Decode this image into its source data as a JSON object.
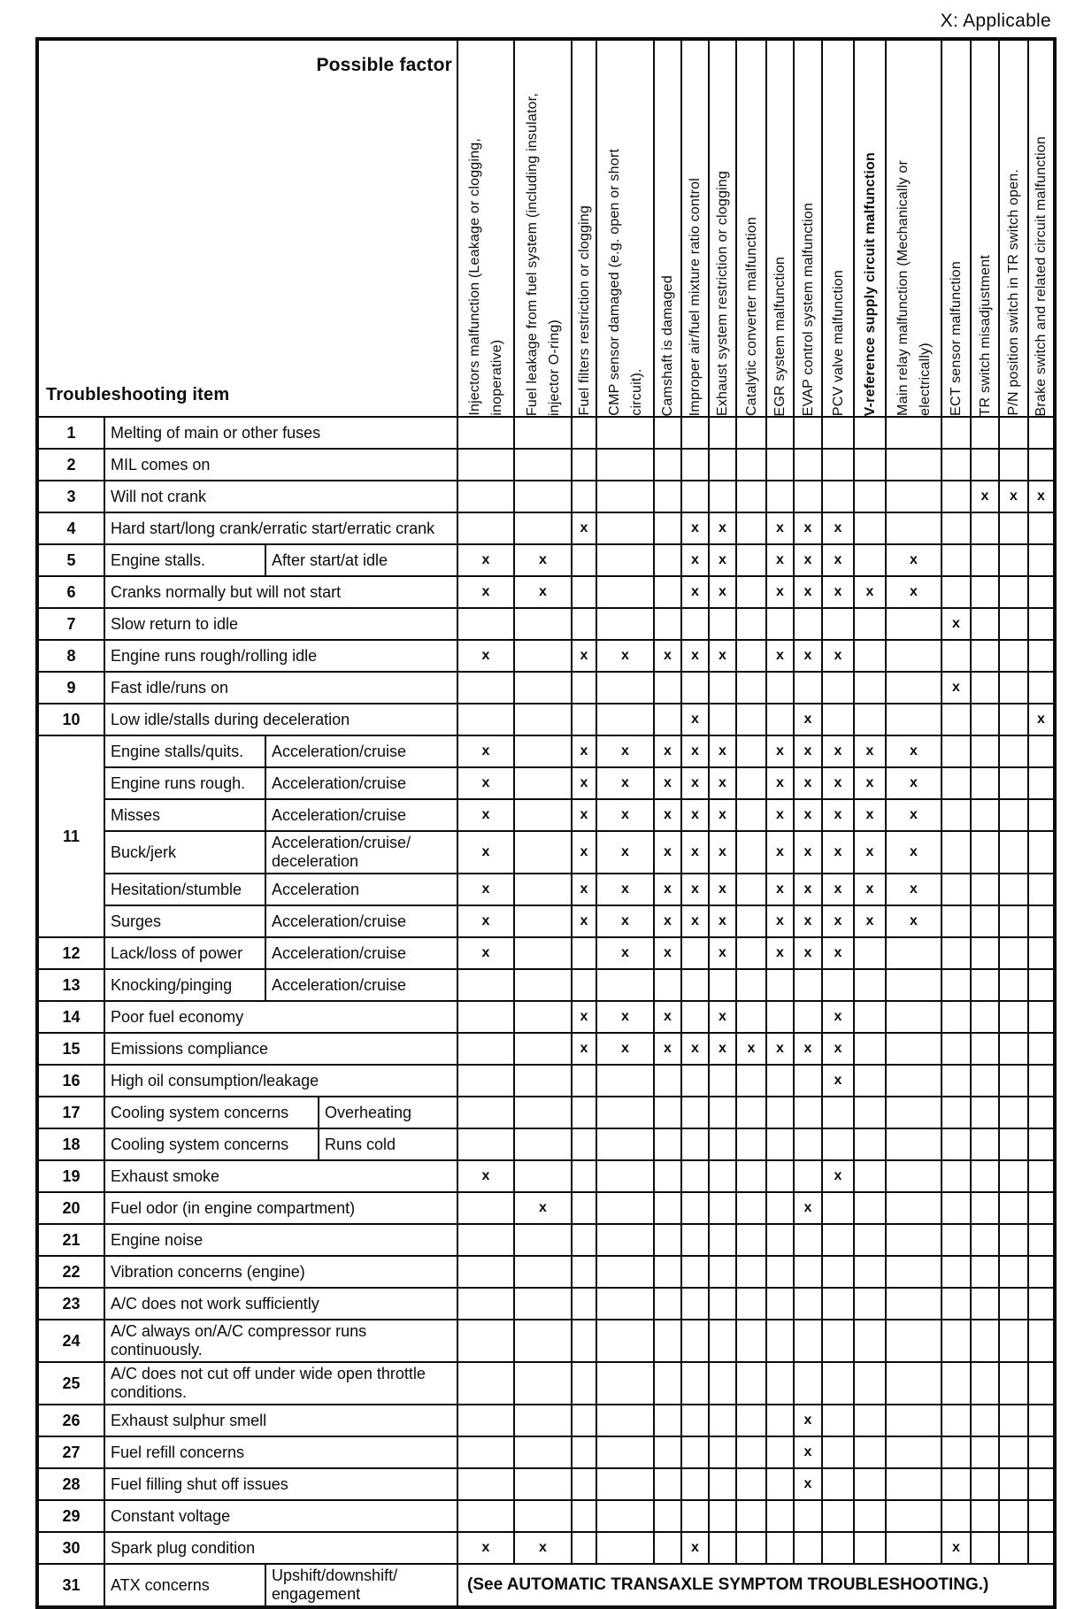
{
  "page": {
    "applicable_note": "X: Applicable",
    "mark": "x"
  },
  "matrix": {
    "corner": {
      "possible_factor": "Possible factor",
      "troubleshooting_item": "Troubleshooting item"
    },
    "factors": [
      {
        "label": "Injectors malfunction (Leakage or clogging,\ninoperative)"
      },
      {
        "label": "Fuel leakage from fuel system (including insulator,\ninjector O-ring)"
      },
      {
        "label": "Fuel filters restriction or clogging"
      },
      {
        "label": "CMP sensor damaged (e.g. open or short\ncircuit)."
      },
      {
        "label": "Camshaft is damaged"
      },
      {
        "label": "Improper air/fuel mixture ratio control"
      },
      {
        "label": "Exhaust system restriction or clogging"
      },
      {
        "label": "Catalytic converter malfunction"
      },
      {
        "label": "EGR system malfunction"
      },
      {
        "label": "EVAP control system malfunction"
      },
      {
        "label": "PCV valve malfunction"
      },
      {
        "label": "V-reference supply circuit malfunction",
        "bold": true
      },
      {
        "label": "Main relay malfunction (Mechanically or\nelectrically)"
      },
      {
        "label": "ECT sensor malfunction"
      },
      {
        "label": "TR switch misadjustment"
      },
      {
        "label": "P/N position switch in TR switch open."
      },
      {
        "label": "Brake switch and related circuit malfunction"
      }
    ],
    "rows": [
      {
        "num": "1",
        "item": "Melting of main or other fuses",
        "marks": []
      },
      {
        "num": "2",
        "item": "MIL comes on",
        "marks": []
      },
      {
        "num": "3",
        "item": "Will not crank",
        "marks": [
          15,
          16,
          17
        ]
      },
      {
        "num": "4",
        "item": "Hard start/long crank/erratic start/erratic crank",
        "marks": [
          3,
          6,
          7,
          9,
          10,
          11
        ]
      },
      {
        "num": "5",
        "item": "Engine stalls.",
        "cond": "After start/at idle",
        "split": "narrow",
        "marks": [
          1,
          2,
          6,
          7,
          9,
          10,
          11,
          13
        ]
      },
      {
        "num": "6",
        "item": "Cranks normally but will not start",
        "marks": [
          1,
          2,
          6,
          7,
          9,
          10,
          11,
          12,
          13
        ]
      },
      {
        "num": "7",
        "item": "Slow return to idle",
        "marks": [
          14
        ]
      },
      {
        "num": "8",
        "item": "Engine runs rough/rolling idle",
        "marks": [
          1,
          3,
          4,
          5,
          6,
          7,
          9,
          10,
          11
        ]
      },
      {
        "num": "9",
        "item": "Fast idle/runs on",
        "marks": [
          14
        ]
      },
      {
        "num": "10",
        "item": "Low idle/stalls during deceleration",
        "marks": [
          6,
          10,
          17
        ]
      },
      {
        "num": "11",
        "span": 6,
        "item": "Engine stalls/quits.",
        "cond": "Acceleration/cruise",
        "split": "narrow",
        "marks": [
          1,
          3,
          4,
          5,
          6,
          7,
          9,
          10,
          11,
          12,
          13
        ]
      },
      {
        "item": "Engine runs rough.",
        "cond": "Acceleration/cruise",
        "split": "narrow",
        "marks": [
          1,
          3,
          4,
          5,
          6,
          7,
          9,
          10,
          11,
          12,
          13
        ]
      },
      {
        "item": "Misses",
        "cond": "Acceleration/cruise",
        "split": "narrow",
        "marks": [
          1,
          3,
          4,
          5,
          6,
          7,
          9,
          10,
          11,
          12,
          13
        ]
      },
      {
        "item": "Buck/jerk",
        "cond": "Acceleration/cruise/\ndeceleration",
        "split": "narrow",
        "marks": [
          1,
          3,
          4,
          5,
          6,
          7,
          9,
          10,
          11,
          12,
          13
        ]
      },
      {
        "item": "Hesitation/stumble",
        "cond": "Acceleration",
        "split": "narrow",
        "marks": [
          1,
          3,
          4,
          5,
          6,
          7,
          9,
          10,
          11,
          12,
          13
        ]
      },
      {
        "item": "Surges",
        "cond": "Acceleration/cruise",
        "split": "narrow",
        "marks": [
          1,
          3,
          4,
          5,
          6,
          7,
          9,
          10,
          11,
          12,
          13
        ]
      },
      {
        "num": "12",
        "item": "Lack/loss of power",
        "cond": "Acceleration/cruise",
        "split": "narrow",
        "marks": [
          1,
          4,
          5,
          7,
          9,
          10,
          11
        ]
      },
      {
        "num": "13",
        "item": "Knocking/pinging",
        "cond": "Acceleration/cruise",
        "split": "narrow",
        "marks": []
      },
      {
        "num": "14",
        "item": "Poor fuel economy",
        "marks": [
          3,
          4,
          5,
          7,
          11
        ]
      },
      {
        "num": "15",
        "item": "Emissions compliance",
        "marks": [
          3,
          4,
          5,
          6,
          7,
          8,
          9,
          10,
          11
        ]
      },
      {
        "num": "16",
        "item": "High oil consumption/leakage",
        "marks": [
          11
        ]
      },
      {
        "num": "17",
        "item": "Cooling system concerns",
        "cond": "Overheating",
        "split": "wide",
        "marks": []
      },
      {
        "num": "18",
        "item": "Cooling system concerns",
        "cond": "Runs cold",
        "split": "wide",
        "marks": []
      },
      {
        "num": "19",
        "item": "Exhaust smoke",
        "marks": [
          1,
          11
        ]
      },
      {
        "num": "20",
        "item": "Fuel odor (in engine compartment)",
        "marks": [
          2,
          10
        ]
      },
      {
        "num": "21",
        "item": "Engine noise",
        "marks": []
      },
      {
        "num": "22",
        "item": "Vibration concerns (engine)",
        "marks": []
      },
      {
        "num": "23",
        "item": "A/C does not work sufficiently",
        "marks": []
      },
      {
        "num": "24",
        "item": "A/C always on/A/C compressor runs continuously.",
        "marks": []
      },
      {
        "num": "25",
        "item": "A/C does not cut off under wide open throttle conditions.",
        "marks": []
      },
      {
        "num": "26",
        "item": "Exhaust sulphur smell",
        "marks": [
          10
        ]
      },
      {
        "num": "27",
        "item": "Fuel refill concerns",
        "marks": [
          10
        ]
      },
      {
        "num": "28",
        "item": "Fuel filling shut off issues",
        "marks": [
          10
        ]
      },
      {
        "num": "29",
        "item": "Constant voltage",
        "marks": []
      },
      {
        "num": "30",
        "item": "Spark plug condition",
        "marks": [
          1,
          2,
          6,
          14
        ]
      },
      {
        "num": "31",
        "item": "ATX concerns",
        "cond": "Upshift/downshift/\nengagement",
        "split": "narrow",
        "note": "(See AUTOMATIC TRANSAXLE SYMPTOM TROUBLESHOOTING.)"
      }
    ]
  }
}
